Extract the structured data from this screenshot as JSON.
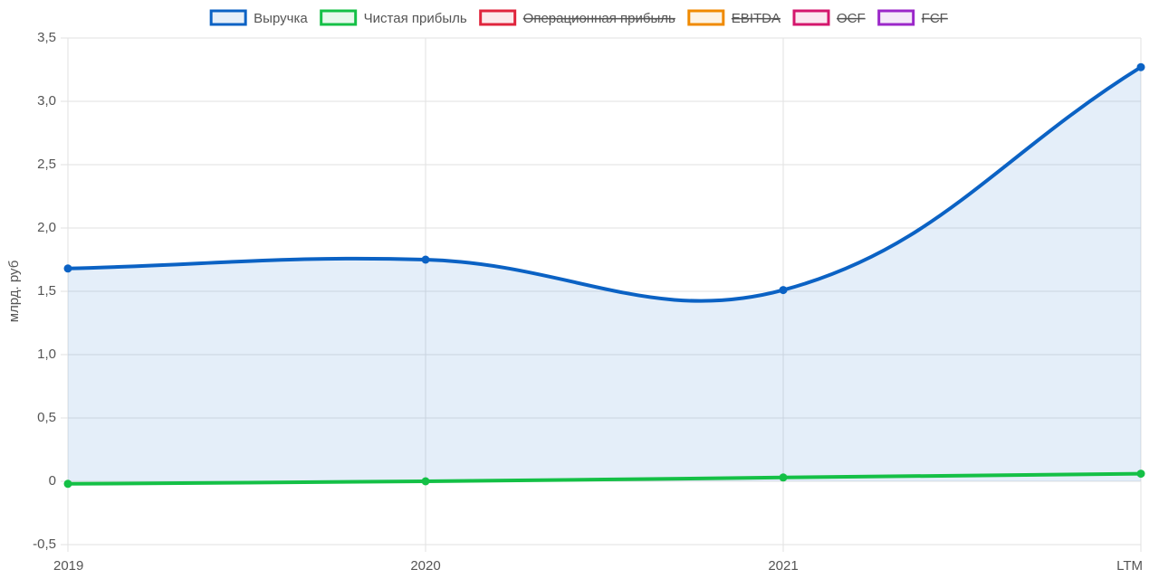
{
  "chart_data": {
    "type": "line",
    "y_label": "млрд. руб",
    "categories": [
      "2019",
      "2020",
      "2021",
      "LTM"
    ],
    "series": [
      {
        "name": "Выручка",
        "color": "#0b62c4",
        "values": [
          1.68,
          1.75,
          1.51,
          3.27
        ],
        "fill": true,
        "hidden": false
      },
      {
        "name": "Чистая прибыль",
        "color": "#14c046",
        "values": [
          -0.02,
          0,
          0.03,
          0.06
        ],
        "fill": false,
        "hidden": false
      },
      {
        "name": "Операционная прибыль",
        "color": "#e0243c",
        "values": [
          null,
          null,
          null,
          null
        ],
        "fill": false,
        "hidden": true
      },
      {
        "name": "EBITDA",
        "color": "#f08a00",
        "values": [
          null,
          null,
          null,
          null
        ],
        "fill": false,
        "hidden": true
      },
      {
        "name": "OCF",
        "color": "#d4166c",
        "values": [
          null,
          null,
          null,
          null
        ],
        "fill": false,
        "hidden": true
      },
      {
        "name": "FCF",
        "color": "#9b27c9",
        "values": [
          null,
          null,
          null,
          null
        ],
        "fill": false,
        "hidden": true
      }
    ],
    "ylim": [
      -0.5,
      3.5
    ],
    "yticks": [
      {
        "value": -0.5,
        "label": "-0,5"
      },
      0,
      {
        "value": 0.5,
        "label": "0,5"
      },
      {
        "value": 1,
        "label": "1,0"
      },
      {
        "value": 1.5,
        "label": "1,5"
      },
      {
        "value": 2,
        "label": "2,0"
      },
      {
        "value": 2.5,
        "label": "2,5"
      },
      {
        "value": 3,
        "label": "3,0"
      },
      {
        "value": 3.5,
        "label": "3,5"
      }
    ],
    "grid": true
  }
}
